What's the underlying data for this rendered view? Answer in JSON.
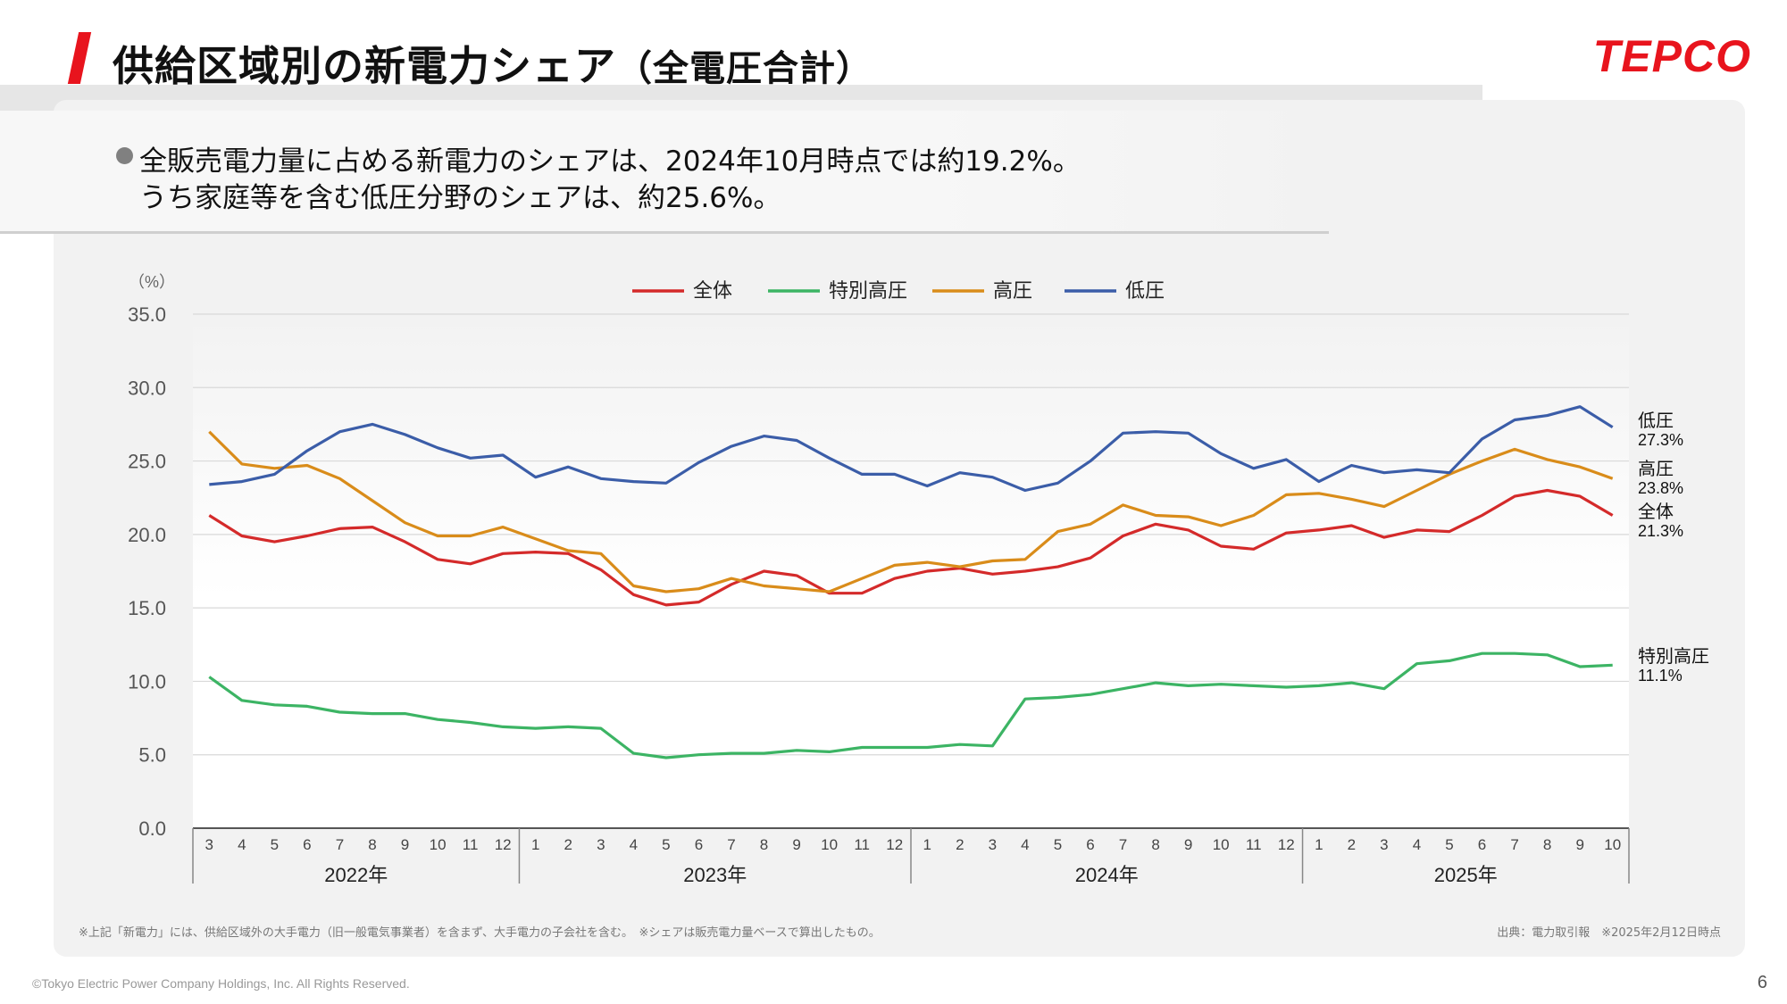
{
  "header": {
    "title": "供給区域別の新電力シェア",
    "title_sub": "（全電圧合計）",
    "logo": "TEPCO"
  },
  "summary": {
    "line1": "全販売電力量に占める新電力のシェアは、2024年10月時点では約19.2%。",
    "line2": "うち家庭等を含む低圧分野のシェアは、約25.6%。"
  },
  "footer": {
    "note_left": "※上記「新電力」には、供給区域外の大手電力（旧一般電気事業者）を含まず、大手電力の子会社を含む。　※シェアは販売電力量ベースで算出したもの。",
    "note_right": "出典：電力取引報　※2025年2月12日時点",
    "copyright": "©Tokyo Electric Power Company Holdings, Inc. All Rights Reserved.",
    "page": "6"
  },
  "chart_data": {
    "type": "line",
    "ylabel": "（%）",
    "ylim": [
      0,
      35
    ],
    "yticks": [
      "0.0",
      "5.0",
      "10.0",
      "15.0",
      "20.0",
      "25.0",
      "30.0",
      "35.0"
    ],
    "grid": true,
    "legend_position": "top",
    "x": [
      "3",
      "4",
      "5",
      "6",
      "7",
      "8",
      "9",
      "10",
      "11",
      "12",
      "1",
      "2",
      "3",
      "4",
      "5",
      "6",
      "7",
      "8",
      "9",
      "10",
      "11",
      "12",
      "1",
      "2",
      "3",
      "4",
      "5",
      "6",
      "7",
      "8",
      "9",
      "10",
      "11",
      "12",
      "1",
      "2",
      "3",
      "4",
      "5",
      "6",
      "7",
      "8",
      "9",
      "10"
    ],
    "year_groups": [
      {
        "label": "2022年",
        "count": 10
      },
      {
        "label": "2023年",
        "count": 12
      },
      {
        "label": "2024年",
        "count": 12
      },
      {
        "label": "2025年",
        "count": 10
      }
    ],
    "series": [
      {
        "name": "全体",
        "color": "#d42a2a",
        "end_label": "全体",
        "end_value": "21.3%",
        "values": [
          21.3,
          19.9,
          19.5,
          19.9,
          20.4,
          20.5,
          19.5,
          18.3,
          18.0,
          18.7,
          18.8,
          18.7,
          17.6,
          15.9,
          15.2,
          15.4,
          16.6,
          17.5,
          17.2,
          16.0,
          16.0,
          17.0,
          17.5,
          17.7,
          17.3,
          17.5,
          17.8,
          18.4,
          19.9,
          20.7,
          20.3,
          19.2,
          19.0,
          20.1,
          20.3,
          20.6,
          19.8,
          20.3,
          20.2,
          21.3,
          22.6,
          23.0,
          22.6,
          21.3
        ]
      },
      {
        "name": "特別高圧",
        "color": "#3cb464",
        "end_label": "特別高圧",
        "end_value": "11.1%",
        "values": [
          10.3,
          8.7,
          8.4,
          8.3,
          7.9,
          7.8,
          7.8,
          7.4,
          7.2,
          6.9,
          6.8,
          6.9,
          6.8,
          5.1,
          4.8,
          5.0,
          5.1,
          5.1,
          5.3,
          5.2,
          5.5,
          5.5,
          5.5,
          5.7,
          5.6,
          8.8,
          8.9,
          9.1,
          9.5,
          9.9,
          9.7,
          9.8,
          9.7,
          9.6,
          9.7,
          9.9,
          9.5,
          11.2,
          11.4,
          11.9,
          11.9,
          11.8,
          11.0,
          11.1
        ]
      },
      {
        "name": "高圧",
        "color": "#d98c1a",
        "end_label": "高圧",
        "end_value": "23.8%",
        "values": [
          27.0,
          24.8,
          24.5,
          24.7,
          23.8,
          22.3,
          20.8,
          19.9,
          19.9,
          20.5,
          19.7,
          18.9,
          18.7,
          16.5,
          16.1,
          16.3,
          17.0,
          16.5,
          16.3,
          16.1,
          17.0,
          17.9,
          18.1,
          17.8,
          18.2,
          18.3,
          20.2,
          20.7,
          22.0,
          21.3,
          21.2,
          20.6,
          21.3,
          22.7,
          22.8,
          22.4,
          21.9,
          23.0,
          24.1,
          25.0,
          25.8,
          25.1,
          24.6,
          23.8
        ]
      },
      {
        "name": "低圧",
        "color": "#3b5da8",
        "end_label": "低圧",
        "end_value": "27.3%",
        "values": [
          23.4,
          23.6,
          24.1,
          25.7,
          27.0,
          27.5,
          26.8,
          25.9,
          25.2,
          25.4,
          23.9,
          24.6,
          23.8,
          23.6,
          23.5,
          24.9,
          26.0,
          26.7,
          26.4,
          25.2,
          24.1,
          24.1,
          23.3,
          24.2,
          23.9,
          23.0,
          23.5,
          25.0,
          26.9,
          27.0,
          26.9,
          25.5,
          24.5,
          25.1,
          23.6,
          24.7,
          24.2,
          24.4,
          24.2,
          26.5,
          27.8,
          28.1,
          28.7,
          27.3
        ]
      }
    ]
  }
}
